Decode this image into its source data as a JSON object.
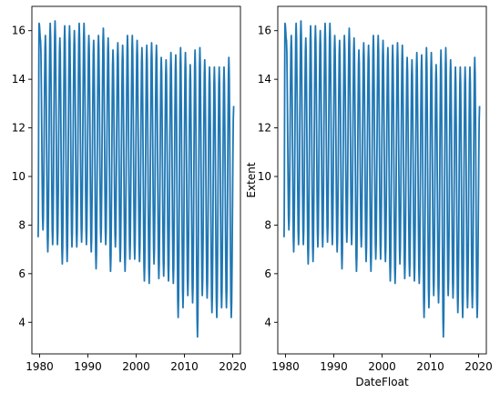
{
  "chart_data": [
    {
      "type": "line",
      "title": "",
      "xlabel": "",
      "ylabel": "",
      "xlim": [
        1978.4,
        2021.6
      ],
      "ylim": [
        2.7,
        17.0
      ],
      "xticks": [
        1980,
        1990,
        2000,
        2010,
        2020
      ],
      "yticks": [
        4,
        6,
        8,
        10,
        12,
        14,
        16
      ],
      "grid": false,
      "color": "#1f77b4",
      "series": [
        {
          "x_start": 1979.9,
          "x_end": 2020.4,
          "cycle": "annual",
          "annual_max": [
            16.3,
            15.6,
            15.8,
            16.3,
            16.4,
            15.7,
            16.2,
            16.2,
            16.0,
            16.3,
            16.3,
            15.8,
            15.6,
            15.8,
            16.1,
            15.7,
            15.2,
            15.5,
            15.4,
            15.8,
            15.8,
            15.6,
            15.3,
            15.4,
            15.5,
            15.4,
            14.9,
            14.8,
            15.1,
            15.0,
            15.3,
            15.1,
            14.6,
            15.2,
            15.3,
            14.8,
            14.5,
            14.5,
            14.5,
            14.5,
            14.9,
            12.9
          ],
          "annual_min": [
            7.5,
            7.8,
            6.9,
            7.2,
            7.2,
            6.4,
            6.5,
            7.1,
            7.1,
            7.3,
            7.2,
            6.9,
            6.2,
            7.3,
            7.2,
            6.1,
            7.1,
            6.5,
            6.1,
            6.6,
            6.6,
            6.5,
            5.7,
            5.6,
            6.4,
            5.8,
            5.9,
            5.7,
            5.6,
            4.2,
            4.6,
            5.1,
            4.8,
            3.4,
            5.1,
            5.0,
            4.4,
            4.2,
            4.6,
            4.6,
            4.2
          ]
        }
      ]
    },
    {
      "type": "line",
      "title": "",
      "xlabel": "DateFloat",
      "ylabel": "Extent",
      "xlim": [
        1978.4,
        2021.6
      ],
      "ylim": [
        2.7,
        17.0
      ],
      "xticks": [
        1980,
        1990,
        2000,
        2010,
        2020
      ],
      "yticks": [
        4,
        6,
        8,
        10,
        12,
        14,
        16
      ],
      "grid": false,
      "color": "#1f77b4",
      "series": [
        {
          "x_start": 1979.9,
          "x_end": 2020.4,
          "cycle": "annual",
          "annual_max": [
            16.3,
            15.6,
            15.8,
            16.3,
            16.4,
            15.7,
            16.2,
            16.2,
            16.0,
            16.3,
            16.3,
            15.8,
            15.6,
            15.8,
            16.1,
            15.7,
            15.2,
            15.5,
            15.4,
            15.8,
            15.8,
            15.6,
            15.3,
            15.4,
            15.5,
            15.4,
            14.9,
            14.8,
            15.1,
            15.0,
            15.3,
            15.1,
            14.6,
            15.2,
            15.3,
            14.8,
            14.5,
            14.5,
            14.5,
            14.5,
            14.9,
            12.9
          ],
          "annual_min": [
            7.5,
            7.8,
            6.9,
            7.2,
            7.2,
            6.4,
            6.5,
            7.1,
            7.1,
            7.3,
            7.2,
            6.9,
            6.2,
            7.3,
            7.2,
            6.1,
            7.1,
            6.5,
            6.1,
            6.6,
            6.6,
            6.5,
            5.7,
            5.6,
            6.4,
            5.8,
            5.9,
            5.7,
            5.6,
            4.2,
            4.6,
            5.1,
            4.8,
            3.4,
            5.1,
            5.0,
            4.4,
            4.2,
            4.6,
            4.6,
            4.2
          ]
        }
      ]
    }
  ]
}
